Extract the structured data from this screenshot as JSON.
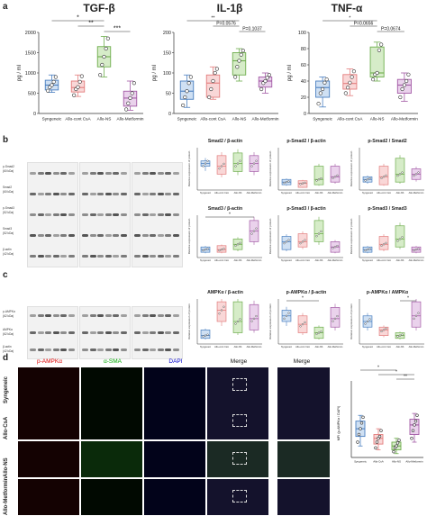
{
  "panel_labels": {
    "a": "a",
    "b": "b",
    "c": "c",
    "d": "d"
  },
  "groups": [
    "Syngeneic",
    "Allo-cont CsA",
    "Allo-NS",
    "Allo-Metformin"
  ],
  "colors": {
    "syngeneic": "#4a7fc0",
    "csa": "#e37d7d",
    "ns": "#6fae4e",
    "met": "#a35aa6"
  },
  "fills": {
    "syngeneic": "#cfe0f3",
    "csa": "#f9d7d7",
    "ns": "#d6ecc8",
    "met": "#ead2ec"
  },
  "section_a": {
    "tgf_title": "TGF-β",
    "il1_title": "IL-1β",
    "tnf_title": "TNF-α",
    "ylabel": "pg / ml",
    "tgf_sig": [
      "*",
      "**",
      "***"
    ],
    "il1_sig": [
      "**",
      "P=0.0576",
      "P=0.1037"
    ],
    "tnf_sig": [
      "*",
      "P=0.0656",
      "P=0.0674"
    ]
  },
  "section_b": {
    "blot_labels": [
      "p-Smad2",
      "(60 kDa)",
      "Smad2",
      "(60 kDa)",
      "p-Smad3",
      "(52 kDa)",
      "Smad3",
      "(52 kDa)",
      "β-actin",
      "(42 kDa)"
    ],
    "titles": [
      "Smad2 / β-actin",
      "p-Smad2 / β-actin",
      "p-Smad2 / Smad2",
      "Smad3 / β-actin",
      "p-Smad3 / β-actin",
      "p-Smad3 / Smad3"
    ],
    "ylabel": "Relative expression of protein",
    "smad3_sig": "*"
  },
  "section_c": {
    "blot_labels": [
      "p-AMPKα",
      "(62 kDa)",
      "AMPKα",
      "(62 kDa)",
      "β-actin",
      "(42 kDa)"
    ],
    "titles": [
      "AMPKα / β-actin",
      "p-AMPKα / β-actin",
      "p-AMPKα / AMPKα"
    ],
    "sig": [
      "*",
      "*"
    ]
  },
  "section_d": {
    "col_labels": [
      "p-AMPKα",
      "α-SMA",
      "DAPI",
      "Merge",
      "Merge"
    ],
    "row_labels": [
      "Syngeneic",
      "Allo-CsA",
      "Allo-NS",
      "Allo-Metformin"
    ],
    "chart_ylabel": "MFI (p-AMPKα / DAPI)",
    "sig": [
      "*",
      "*",
      "**"
    ]
  },
  "chart_data": [
    {
      "type": "box",
      "title": "TGF-β",
      "ylabel": "pg / ml",
      "ylim": [
        0,
        2000
      ],
      "yticks": [
        0,
        500,
        1000,
        1500,
        2000
      ],
      "series": [
        {
          "name": "Syngeneic",
          "q1": 580,
          "median": 700,
          "q3": 820,
          "min": 520,
          "max": 950,
          "points": [
            560,
            650,
            700,
            780,
            900
          ]
        },
        {
          "name": "Allo-cont CsA",
          "q1": 530,
          "median": 640,
          "q3": 800,
          "min": 420,
          "max": 950,
          "points": [
            450,
            600,
            650,
            780,
            920
          ]
        },
        {
          "name": "Allo-NS",
          "q1": 1150,
          "median": 1400,
          "q3": 1650,
          "min": 900,
          "max": 1900,
          "points": [
            950,
            1200,
            1400,
            1600,
            1850
          ]
        },
        {
          "name": "Allo-Metformin",
          "q1": 180,
          "median": 380,
          "q3": 550,
          "min": 80,
          "max": 800,
          "points": [
            100,
            250,
            380,
            500,
            750
          ]
        }
      ]
    },
    {
      "type": "box",
      "title": "IL-1β",
      "ylabel": "pg / ml",
      "ylim": [
        0,
        200
      ],
      "yticks": [
        0,
        50,
        100,
        150,
        200
      ],
      "series": [
        {
          "name": "Syngeneic",
          "q1": 35,
          "median": 55,
          "q3": 80,
          "min": 15,
          "max": 95,
          "points": [
            20,
            40,
            55,
            75,
            90
          ]
        },
        {
          "name": "Allo-cont CsA",
          "q1": 40,
          "median": 75,
          "q3": 95,
          "min": 35,
          "max": 115,
          "points": [
            40,
            60,
            80,
            100,
            110
          ]
        },
        {
          "name": "Allo-NS",
          "q1": 95,
          "median": 130,
          "q3": 150,
          "min": 80,
          "max": 160,
          "points": [
            90,
            115,
            130,
            145,
            155
          ]
        },
        {
          "name": "Allo-Metformin",
          "q1": 65,
          "median": 80,
          "q3": 90,
          "min": 50,
          "max": 100,
          "points": [
            60,
            75,
            80,
            88,
            95
          ]
        }
      ]
    },
    {
      "type": "box",
      "title": "TNF-α",
      "ylabel": "pg / ml",
      "ylim": [
        0,
        100
      ],
      "yticks": [
        0,
        20,
        40,
        60,
        80,
        100
      ],
      "series": [
        {
          "name": "Syngeneic",
          "q1": 20,
          "median": 32,
          "q3": 40,
          "min": 8,
          "max": 45,
          "points": [
            12,
            25,
            30,
            38,
            42
          ]
        },
        {
          "name": "Allo-cont CsA",
          "q1": 30,
          "median": 37,
          "q3": 48,
          "min": 22,
          "max": 55,
          "points": [
            25,
            32,
            38,
            45,
            52
          ]
        },
        {
          "name": "Allo-NS",
          "q1": 45,
          "median": 50,
          "q3": 82,
          "min": 40,
          "max": 88,
          "points": [
            42,
            48,
            50,
            78,
            85
          ]
        },
        {
          "name": "Allo-Metformin",
          "q1": 25,
          "median": 35,
          "q3": 42,
          "min": 15,
          "max": 50,
          "points": [
            20,
            30,
            35,
            40,
            48
          ]
        }
      ]
    },
    {
      "type": "box",
      "title": "MFI (p-AMPKα / DAPI)",
      "ylim": [
        0,
        2
      ],
      "series": [
        {
          "name": "Syngeneic",
          "q1": 0.55,
          "median": 0.75,
          "q3": 0.95,
          "min": 0.3,
          "max": 1.1,
          "points": [
            0.4,
            0.6,
            0.75,
            0.9,
            1.05
          ]
        },
        {
          "name": "Allo-CsA",
          "q1": 0.35,
          "median": 0.5,
          "q3": 0.6,
          "min": 0.2,
          "max": 0.75,
          "points": [
            0.25,
            0.4,
            0.5,
            0.55,
            0.7
          ]
        },
        {
          "name": "Allo-NS",
          "q1": 0.2,
          "median": 0.3,
          "q3": 0.4,
          "min": 0.1,
          "max": 0.5,
          "points": [
            0.15,
            0.25,
            0.3,
            0.38,
            0.45
          ]
        },
        {
          "name": "Allo-Metformin",
          "q1": 0.6,
          "median": 0.85,
          "q3": 1.0,
          "min": 0.4,
          "max": 1.15,
          "points": [
            0.5,
            0.7,
            0.85,
            0.95,
            1.1
          ]
        }
      ]
    }
  ]
}
